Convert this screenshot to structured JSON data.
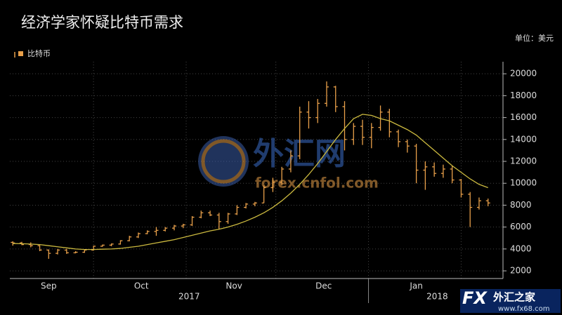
{
  "chart_data": {
    "type": "ohlc",
    "title": "经济学家怀疑比特币需求",
    "unit_label": "单位：美元",
    "x": [
      3,
      6,
      9,
      12,
      15,
      18,
      21,
      24,
      27,
      30,
      33,
      36,
      39,
      42,
      45,
      48,
      51,
      54,
      57,
      60,
      63,
      66,
      69,
      72,
      75,
      78,
      81,
      84,
      87,
      90,
      93,
      96,
      99,
      102,
      105,
      108,
      111,
      114,
      117,
      120,
      123,
      126,
      129,
      132,
      135,
      138,
      141,
      144,
      147,
      150,
      153,
      156,
      159,
      162
    ],
    "xlim": [
      2,
      167
    ],
    "xticks": [
      {
        "value": 15,
        "label": "Sep"
      },
      {
        "value": 46,
        "label": "Oct"
      },
      {
        "value": 77,
        "label": "Nov"
      },
      {
        "value": 107,
        "label": "Dec"
      },
      {
        "value": 138,
        "label": "Jan"
      }
    ],
    "xgrid": [
      30,
      61,
      91,
      122,
      153
    ],
    "year_ticks": [
      {
        "value": 62,
        "label": "2017"
      },
      {
        "value": 145,
        "label": "2018"
      }
    ],
    "year_divider": 122,
    "ylim": [
      1300,
      21100
    ],
    "yticks": [
      2000,
      4000,
      6000,
      8000,
      10000,
      12000,
      14000,
      16000,
      18000,
      20000
    ],
    "grid": true,
    "series": [
      {
        "name": "比特币",
        "color": "#e9a04a",
        "open": [
          4600,
          4550,
          4400,
          4300,
          3900,
          3600,
          3900,
          3650,
          3700,
          3900,
          4250,
          4350,
          4450,
          4750,
          5100,
          5400,
          5600,
          5700,
          5900,
          6100,
          6200,
          6900,
          7300,
          7100,
          6500,
          7200,
          7800,
          8100,
          8200,
          9600,
          10100,
          11300,
          12500,
          16500,
          16000,
          17300,
          18800,
          17000,
          14000,
          15200,
          14200,
          15100,
          16500,
          14700,
          13800,
          13400,
          11200,
          11500,
          10900,
          11300,
          10300,
          9000,
          7800,
          8400
        ],
        "high": [
          4700,
          4650,
          4600,
          4350,
          3950,
          4000,
          4000,
          3800,
          3950,
          4300,
          4400,
          4500,
          4800,
          5200,
          5500,
          5700,
          6000,
          6000,
          6200,
          6300,
          7000,
          7500,
          7500,
          7300,
          7300,
          8000,
          8200,
          8300,
          9800,
          10500,
          11500,
          13000,
          17000,
          17500,
          17700,
          19300,
          18900,
          17500,
          15500,
          15800,
          15500,
          17100,
          16800,
          14900,
          14000,
          13600,
          12000,
          11900,
          11700,
          11600,
          10400,
          9200,
          8700,
          8600
        ],
        "low": [
          4300,
          4350,
          4150,
          3800,
          3100,
          3500,
          3550,
          3600,
          3650,
          3850,
          4200,
          4250,
          4400,
          4700,
          5000,
          5350,
          5200,
          5600,
          5700,
          5900,
          6100,
          6800,
          7000,
          5800,
          6300,
          7100,
          7700,
          7900,
          8200,
          9200,
          9800,
          11000,
          12200,
          15000,
          15500,
          17000,
          16500,
          13000,
          13500,
          13500,
          13200,
          14800,
          14200,
          13300,
          12800,
          10000,
          9400,
          10600,
          10500,
          10000,
          8700,
          6000,
          7600,
          7900
        ],
        "close": [
          4550,
          4400,
          4300,
          3900,
          3600,
          3900,
          3650,
          3700,
          3900,
          4250,
          4350,
          4450,
          4750,
          5100,
          5400,
          5600,
          5700,
          5900,
          6100,
          6200,
          6900,
          7300,
          7100,
          6500,
          7200,
          7800,
          8100,
          8200,
          9600,
          10100,
          11300,
          12500,
          16500,
          16000,
          17300,
          18800,
          17000,
          14000,
          15200,
          14200,
          15100,
          16500,
          14700,
          13800,
          13400,
          11200,
          11500,
          10900,
          11300,
          10300,
          9000,
          7800,
          8400,
          8200
        ]
      }
    ],
    "moving_average": {
      "color": "#cbb93f",
      "values": [
        4500,
        4480,
        4450,
        4400,
        4300,
        4200,
        4100,
        4000,
        3950,
        3950,
        3980,
        4000,
        4050,
        4150,
        4250,
        4400,
        4550,
        4700,
        4850,
        5050,
        5250,
        5450,
        5650,
        5800,
        6000,
        6250,
        6550,
        6900,
        7300,
        7800,
        8400,
        9100,
        9900,
        10800,
        11800,
        12900,
        14000,
        15000,
        15900,
        16300,
        16200,
        15900,
        15700,
        15300,
        14900,
        14400,
        13700,
        13000,
        12300,
        11600,
        11000,
        10400,
        9900,
        9600
      ]
    },
    "watermarks": [
      "外汇网",
      "forex.cnfol.com",
      "FX",
      "外汇之家",
      "www.fx68.com"
    ]
  }
}
